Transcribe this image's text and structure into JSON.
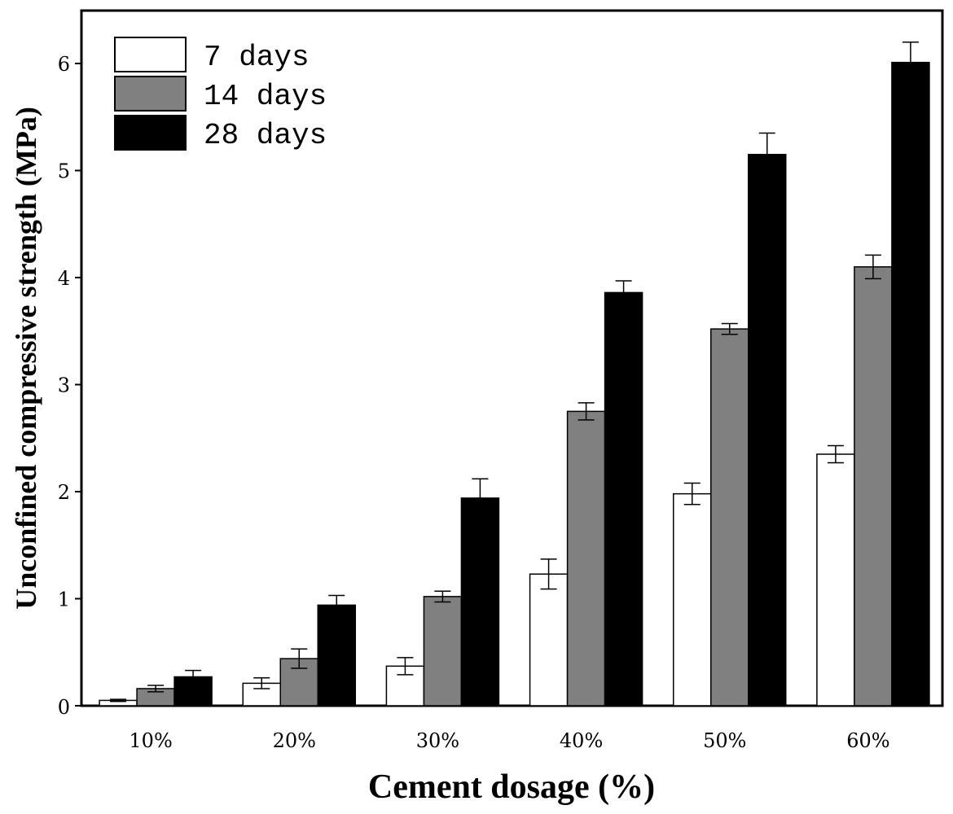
{
  "chart_data": {
    "type": "bar",
    "title": "",
    "xlabel": "Cement dosage (%)",
    "ylabel": "Unconfined compressive strength (MPa)",
    "ylim": [
      0,
      6.5
    ],
    "yticks": [
      0,
      1,
      2,
      3,
      4,
      5,
      6
    ],
    "categories": [
      "10%",
      "20%",
      "30%",
      "40%",
      "50%",
      "60%"
    ],
    "series": [
      {
        "name": "7 days",
        "color": "#ffffff",
        "values": [
          0.05,
          0.21,
          0.37,
          1.23,
          1.98,
          2.35
        ],
        "errors": [
          0.01,
          0.05,
          0.08,
          0.14,
          0.1,
          0.08
        ]
      },
      {
        "name": "14 days",
        "color": "#808080",
        "values": [
          0.16,
          0.44,
          1.02,
          2.75,
          3.52,
          4.1
        ],
        "errors": [
          0.03,
          0.09,
          0.05,
          0.08,
          0.05,
          0.11
        ]
      },
      {
        "name": "28 days",
        "color": "#000000",
        "values": [
          0.27,
          0.94,
          1.94,
          3.86,
          5.15,
          6.01
        ],
        "errors": [
          0.06,
          0.09,
          0.18,
          0.11,
          0.2,
          0.19
        ]
      }
    ],
    "legend_position": "top-left",
    "grid": false
  }
}
